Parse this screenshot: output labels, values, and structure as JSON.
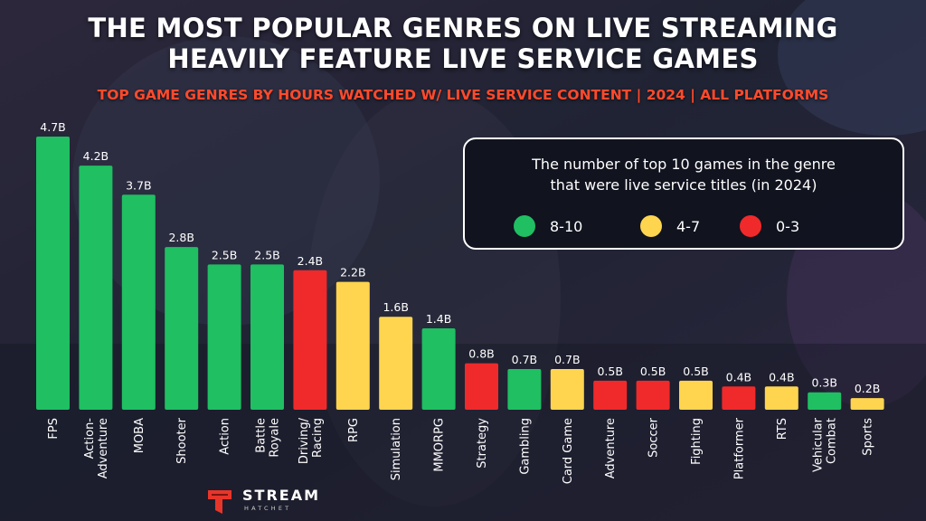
{
  "title_lines": [
    "THE MOST POPULAR GENRES ON LIVE STREAMING",
    "HEAVILY FEATURE LIVE SERVICE GAMES"
  ],
  "subtitle": "TOP GAME GENRES BY HOURS WATCHED W/ LIVE SERVICE CONTENT | 2024 | ALL PLATFORMS",
  "legend": {
    "text_lines": [
      "The number of top 10 games in the genre",
      "that were live service titles (in 2024)"
    ],
    "items": [
      {
        "label": "8-10",
        "color": "#1fbf62"
      },
      {
        "label": "4-7",
        "color": "#ffd54f"
      },
      {
        "label": "0-3",
        "color": "#f02a2a"
      }
    ]
  },
  "colors": {
    "group_8_10": "#1fbf62",
    "group_4_7": "#ffd54f",
    "group_0_3": "#f02a2a"
  },
  "chart_data": {
    "type": "bar",
    "title": "TOP GAME GENRES BY HOURS WATCHED W/ LIVE SERVICE CONTENT | 2024 | ALL PLATFORMS",
    "xlabel": "",
    "ylabel": "",
    "ylim": [
      0,
      4.7
    ],
    "grid": false,
    "legend_position": "top-right",
    "categories": [
      "FPS",
      "Action-Adventure",
      "MOBA",
      "Shooter",
      "Action",
      "Battle Royale",
      "Driving/Racing",
      "RPG",
      "Simulation",
      "MMORPG",
      "Strategy",
      "Gambling",
      "Card Game",
      "Adventure",
      "Soccer",
      "Fighting",
      "Platformer",
      "RTS",
      "Vehicular Combat",
      "Sports"
    ],
    "category_label_lines": [
      [
        "FPS"
      ],
      [
        "Action-",
        "Adventure"
      ],
      [
        "MOBA"
      ],
      [
        "Shooter"
      ],
      [
        "Action"
      ],
      [
        "Battle",
        "Royale"
      ],
      [
        "Driving/",
        "Racing"
      ],
      [
        "RPG"
      ],
      [
        "Simulation"
      ],
      [
        "MMORPG"
      ],
      [
        "Strategy"
      ],
      [
        "Gambling"
      ],
      [
        "Card Game"
      ],
      [
        "Adventure"
      ],
      [
        "Soccer"
      ],
      [
        "Fighting"
      ],
      [
        "Platformer"
      ],
      [
        "RTS"
      ],
      [
        "Vehicular",
        "Combat"
      ],
      [
        "Sports"
      ]
    ],
    "values": [
      4.7,
      4.2,
      3.7,
      2.8,
      2.5,
      2.5,
      2.4,
      2.2,
      1.6,
      1.4,
      0.8,
      0.7,
      0.7,
      0.5,
      0.5,
      0.5,
      0.4,
      0.4,
      0.3,
      0.2
    ],
    "value_labels": [
      "4.7B",
      "4.2B",
      "3.7B",
      "2.8B",
      "2.5B",
      "2.5B",
      "2.4B",
      "2.2B",
      "1.6B",
      "1.4B",
      "0.8B",
      "0.7B",
      "0.7B",
      "0.5B",
      "0.5B",
      "0.5B",
      "0.4B",
      "0.4B",
      "0.3B",
      "0.2B"
    ],
    "live_service_group": [
      "8-10",
      "8-10",
      "8-10",
      "8-10",
      "8-10",
      "8-10",
      "0-3",
      "4-7",
      "4-7",
      "8-10",
      "0-3",
      "8-10",
      "4-7",
      "0-3",
      "0-3",
      "4-7",
      "0-3",
      "4-7",
      "8-10",
      "4-7"
    ]
  },
  "logo": {
    "word": "STREAM",
    "sub": "HATCHET"
  }
}
